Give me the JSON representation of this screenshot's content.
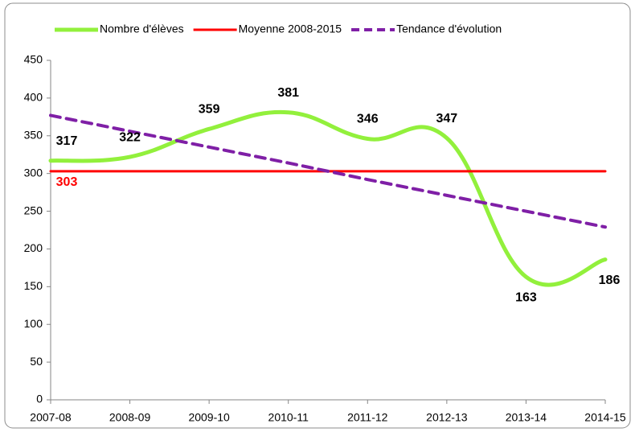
{
  "chart_data": {
    "type": "line",
    "categories": [
      "2007-08",
      "2008-09",
      "2009-10",
      "2010-11",
      "2011-12",
      "2012-13",
      "2013-14",
      "2014-15"
    ],
    "series": [
      {
        "name": "Nombre d'élèves",
        "color": "#92f03c",
        "style": "solid",
        "smooth": true,
        "data_labels": true,
        "values": [
          317,
          322,
          359,
          381,
          346,
          347,
          163,
          186
        ]
      },
      {
        "name": "Moyenne 2008-2015",
        "color": "#ff0000",
        "style": "solid",
        "smooth": false,
        "values": [
          303,
          303,
          303,
          303,
          303,
          303,
          303,
          303
        ]
      },
      {
        "name": "Tendance d'évolution",
        "color": "#7f1fa6",
        "style": "dashed",
        "smooth": false,
        "values": [
          377,
          356,
          335,
          314,
          292,
          271,
          250,
          229
        ]
      }
    ],
    "ylim": [
      0,
      450
    ],
    "yticks": [
      0,
      50,
      100,
      150,
      200,
      250,
      300,
      350,
      400,
      450
    ],
    "grid": false,
    "legend": "top"
  }
}
